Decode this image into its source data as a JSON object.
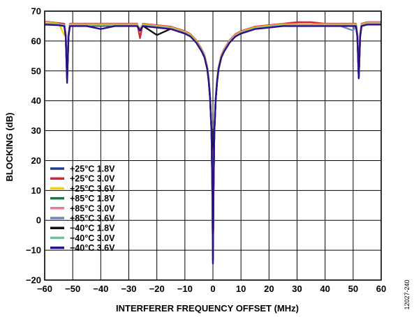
{
  "figure_id": "12027-240",
  "chart_data": {
    "type": "line",
    "title": "",
    "xlabel": "INTERFERER FREQUENCY OFFSET (MHz)",
    "ylabel": "BLOCKING (dB)",
    "xlim": [
      -60,
      60
    ],
    "ylim": [
      -20,
      70
    ],
    "xticks": [
      -60,
      -50,
      -40,
      -30,
      -20,
      -10,
      0,
      10,
      20,
      30,
      40,
      50,
      60
    ],
    "yticks": [
      -20,
      -10,
      0,
      10,
      20,
      30,
      40,
      50,
      60,
      70
    ],
    "xtick_labels": [
      "−60",
      "−50",
      "−40",
      "−30",
      "−20",
      "−10",
      "0",
      "10",
      "20",
      "30",
      "40",
      "50",
      "60"
    ],
    "ytick_labels": [
      "−20",
      "−10",
      "0",
      "10",
      "20",
      "30",
      "40",
      "50",
      "60",
      "70"
    ],
    "grid": true,
    "legend_position": "bottom-left",
    "x": [
      -60,
      -55,
      -53,
      -52.5,
      -52,
      -51.5,
      -51,
      -45,
      -40,
      -35,
      -30,
      -27,
      -26,
      -25,
      -20,
      -15,
      -10,
      -8,
      -6,
      -4,
      -3,
      -2,
      -1.5,
      -1,
      -0.5,
      -0.2,
      0,
      0.2,
      0.5,
      1,
      1.5,
      2,
      3,
      4,
      6,
      8,
      10,
      15,
      20,
      25,
      30,
      35,
      40,
      45,
      50,
      51,
      51.5,
      52,
      52.5,
      53,
      55,
      60
    ],
    "series": [
      {
        "name": "+25°C 1.8V",
        "color": "#1f3f8f",
        "values": [
          66,
          66,
          65.5,
          62,
          48,
          62,
          65.5,
          65.5,
          65.5,
          65.5,
          65.5,
          65.5,
          64,
          65.5,
          65,
          64.5,
          63,
          62,
          60,
          57,
          55,
          51,
          47,
          41,
          30,
          10,
          -13,
          10,
          30,
          41,
          47,
          51,
          55,
          57,
          60,
          62,
          63,
          64.5,
          65,
          65.5,
          65.5,
          65.5,
          65.5,
          65.5,
          65.5,
          65.5,
          62,
          48,
          62,
          65.5,
          66,
          66
        ]
      },
      {
        "name": "+25°C 3.0V",
        "color": "#d9223c",
        "values": [
          66.5,
          66,
          65.8,
          62.2,
          48.2,
          62.2,
          65.8,
          65.8,
          65.8,
          65.8,
          65.8,
          65.8,
          61,
          65.8,
          65.3,
          64.8,
          63.3,
          62.3,
          60.3,
          57.3,
          55.3,
          51.3,
          47.3,
          41.3,
          30.3,
          10.3,
          -12.7,
          10.3,
          30.3,
          41.3,
          47.3,
          51.3,
          55.3,
          57.3,
          60.3,
          62.3,
          63.3,
          64.8,
          65.3,
          65.8,
          66.3,
          66.3,
          65.8,
          65.8,
          65.8,
          65.8,
          62.2,
          48.2,
          62.2,
          65.8,
          66.3,
          66.3
        ]
      },
      {
        "name": "+25°C 3.6V",
        "color": "#f2d600",
        "values": [
          66.3,
          65.8,
          62,
          62,
          48,
          62,
          65.6,
          65.6,
          65.6,
          65.6,
          65.6,
          65.6,
          64.1,
          65.6,
          65.1,
          64.6,
          63.1,
          62.1,
          60.1,
          57.1,
          55.1,
          51.1,
          47.1,
          41.1,
          30.1,
          10.1,
          -12.9,
          10.1,
          30.1,
          41.1,
          47.1,
          51.1,
          55.1,
          57.1,
          60.1,
          62.1,
          63.1,
          64.6,
          65.1,
          65.6,
          65.6,
          65.6,
          65.6,
          65.6,
          65.6,
          65.6,
          62.1,
          48.1,
          62.1,
          65.6,
          66.1,
          66.1
        ]
      },
      {
        "name": "+85°C 1.8V",
        "color": "#0f7d4a",
        "values": [
          65.8,
          65.6,
          65.3,
          61.8,
          47.8,
          61.8,
          65.3,
          65.3,
          65.3,
          65.3,
          65.3,
          65.3,
          63.8,
          65.3,
          64.8,
          64.3,
          62.8,
          61.8,
          59.8,
          56.8,
          54.8,
          50.8,
          46.8,
          40.8,
          29.8,
          9.8,
          -13.2,
          9.8,
          29.8,
          40.8,
          46.8,
          50.8,
          54.8,
          56.8,
          59.8,
          61.8,
          62.8,
          64.3,
          64.8,
          65.3,
          65.3,
          65.3,
          65.3,
          65.3,
          65.3,
          65.3,
          61.8,
          47.8,
          61.8,
          65.3,
          65.8,
          65.8
        ]
      },
      {
        "name": "+85°C 3.0V",
        "color": "#e87a8c",
        "values": [
          65.9,
          65.7,
          65.4,
          61.9,
          47.9,
          61.9,
          65.4,
          65.4,
          65.4,
          65.4,
          65.4,
          65.4,
          63.9,
          65.4,
          64.9,
          64.4,
          62.9,
          61.9,
          59.9,
          56.9,
          54.9,
          50.9,
          46.9,
          40.9,
          29.9,
          9.9,
          -13.1,
          9.9,
          29.9,
          40.9,
          46.9,
          50.9,
          54.9,
          56.9,
          59.9,
          61.9,
          62.9,
          64.4,
          64.9,
          65.4,
          65.4,
          65.4,
          65.4,
          65.4,
          65.4,
          65.4,
          61.9,
          47.9,
          61.9,
          65.4,
          65.9,
          65.9
        ]
      },
      {
        "name": "+85°C 3.6V",
        "color": "#6f86b8",
        "values": [
          65.7,
          65.5,
          65.2,
          61.7,
          47.7,
          61.7,
          65.2,
          65.2,
          65.2,
          65.2,
          65.2,
          65.2,
          63.7,
          65.2,
          64.7,
          64.2,
          62.7,
          61.7,
          59.7,
          56.7,
          54.7,
          50.7,
          46.7,
          40.7,
          29.7,
          9.7,
          -13.3,
          9.7,
          29.7,
          40.7,
          46.7,
          50.7,
          54.7,
          56.7,
          59.7,
          61.7,
          62.7,
          64.2,
          64.7,
          65.2,
          65.2,
          65.2,
          65.2,
          65.2,
          63.5,
          65.2,
          61.7,
          47.7,
          61.7,
          65.2,
          65.7,
          65.7
        ]
      },
      {
        "name": "−40°C 1.8V",
        "color": "#111111",
        "values": [
          65.6,
          65.4,
          65.1,
          61.6,
          47.6,
          61.6,
          65.1,
          65.1,
          65.1,
          65.1,
          65.1,
          65.1,
          63.6,
          65.1,
          62,
          64.1,
          62.6,
          61.6,
          59.6,
          56.6,
          54.6,
          50.6,
          46.6,
          40.6,
          29.6,
          9.6,
          -13.4,
          9.6,
          29.6,
          40.6,
          46.6,
          50.6,
          54.6,
          56.6,
          59.6,
          61.6,
          62.6,
          64.1,
          64.6,
          65.1,
          65.1,
          65.1,
          65.1,
          65.1,
          65.1,
          65.1,
          61.6,
          47.6,
          61.6,
          65.1,
          65.6,
          65.6
        ]
      },
      {
        "name": "−40°C 3.0V",
        "color": "#79c09a",
        "values": [
          65.8,
          65.6,
          65.3,
          61.8,
          47.8,
          61.8,
          65.3,
          65.3,
          65.3,
          65.3,
          65.3,
          65.3,
          63.8,
          65.3,
          64.8,
          64.3,
          62.8,
          61.8,
          59.8,
          56.8,
          54.8,
          50.8,
          46.8,
          40.8,
          29.8,
          7,
          -13.2,
          9.8,
          29.8,
          40.8,
          46.8,
          50.8,
          54.8,
          56.8,
          59.8,
          61.8,
          62.8,
          64.3,
          64.8,
          65.3,
          65.3,
          65.3,
          65.3,
          65.3,
          65.3,
          65.3,
          61.8,
          47.8,
          61.8,
          65.3,
          65.8,
          65.8
        ]
      },
      {
        "name": "−40°C 3.6V",
        "color": "#2e0f8a",
        "values": [
          65.5,
          65.3,
          65,
          61.5,
          46,
          61.5,
          65,
          65,
          64,
          65,
          65,
          65,
          63.5,
          65,
          64.5,
          64,
          62.5,
          61.5,
          59.5,
          56.5,
          54.5,
          50.5,
          46.5,
          40.5,
          29.5,
          9.5,
          -14.5,
          9.5,
          29.5,
          40.5,
          46.5,
          50.5,
          54.5,
          56.5,
          59.5,
          61.5,
          62.5,
          64,
          64.5,
          65,
          65,
          65,
          65,
          65,
          65,
          65,
          61.5,
          47.5,
          61.5,
          65,
          65.5,
          65.5
        ]
      }
    ]
  }
}
